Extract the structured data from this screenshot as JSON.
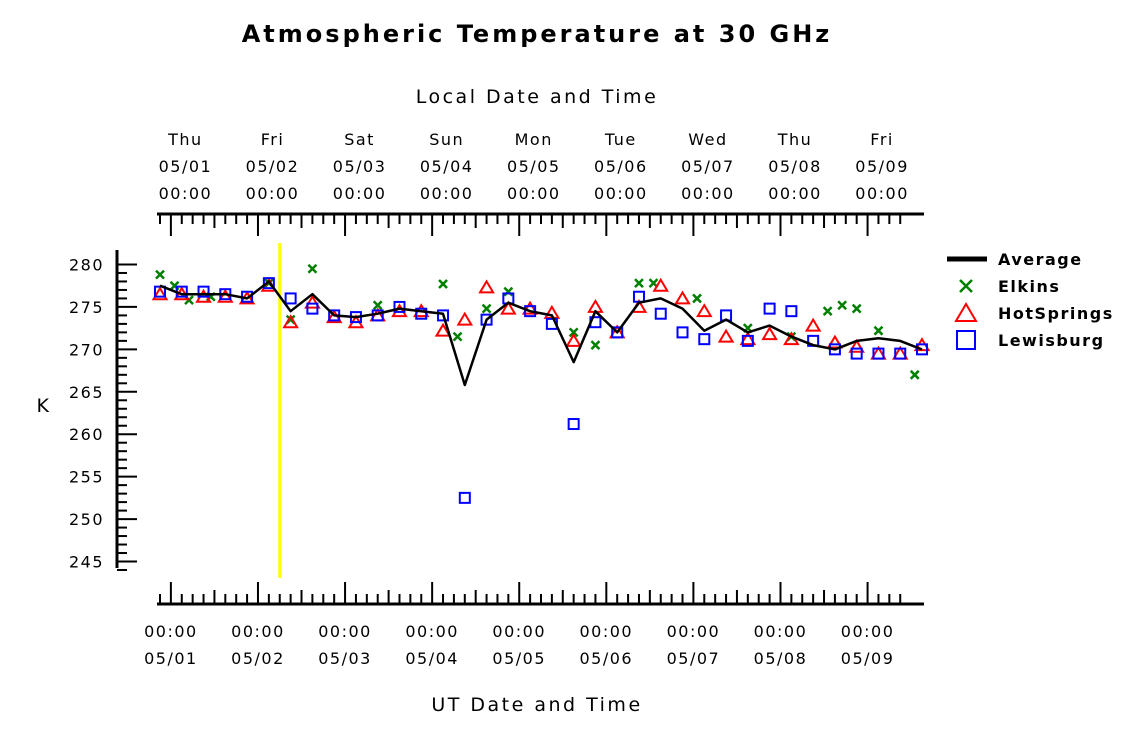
{
  "chart_data": {
    "type": "line+scatter",
    "title": "Atmospheric Temperature at 30 GHz",
    "top_axis_label": "Local Date and Time",
    "xlabel": "UT Date and Time",
    "ylabel": "K",
    "ylim": [
      244,
      281
    ],
    "yticks": [
      245,
      250,
      255,
      260,
      265,
      270,
      275,
      280
    ],
    "xlim": [
      "2008-04-30T21:00",
      "2008-05-09T15:00"
    ],
    "top_ticks": [
      {
        "day": "Thu",
        "date": "05/01",
        "time": "00:00"
      },
      {
        "day": "Fri",
        "date": "05/02",
        "time": "00:00"
      },
      {
        "day": "Sat",
        "date": "05/03",
        "time": "00:00"
      },
      {
        "day": "Sun",
        "date": "05/04",
        "time": "00:00"
      },
      {
        "day": "Mon",
        "date": "05/05",
        "time": "00:00"
      },
      {
        "day": "Tue",
        "date": "05/06",
        "time": "00:00"
      },
      {
        "day": "Wed",
        "date": "05/07",
        "time": "00:00"
      },
      {
        "day": "Thu",
        "date": "05/08",
        "time": "00:00"
      },
      {
        "day": "Fri",
        "date": "05/09",
        "time": "00:00"
      }
    ],
    "bottom_ticks": [
      {
        "time": "00:00",
        "date": "05/01"
      },
      {
        "time": "00:00",
        "date": "05/02"
      },
      {
        "time": "00:00",
        "date": "05/03"
      },
      {
        "time": "00:00",
        "date": "05/04"
      },
      {
        "time": "00:00",
        "date": "05/05"
      },
      {
        "time": "00:00",
        "date": "05/06"
      },
      {
        "time": "00:00",
        "date": "05/07"
      },
      {
        "time": "00:00",
        "date": "05/08"
      },
      {
        "time": "00:00",
        "date": "05/09"
      }
    ],
    "marker_line": {
      "x": "2008-05-02T06:00",
      "color": "#ffff00"
    },
    "legend": "right",
    "series": [
      {
        "name": "Average",
        "marker": "line",
        "color": "#000000",
        "points": [
          [
            "2008-04-30T21:00",
            277.5
          ],
          [
            "2008-05-01T03:00",
            276.5
          ],
          [
            "2008-05-01T09:00",
            276.5
          ],
          [
            "2008-05-01T15:00",
            276.5
          ],
          [
            "2008-05-01T21:00",
            276.0
          ],
          [
            "2008-05-02T03:00",
            278.0
          ],
          [
            "2008-05-02T09:00",
            274.5
          ],
          [
            "2008-05-02T15:00",
            276.5
          ],
          [
            "2008-05-02T21:00",
            274.0
          ],
          [
            "2008-05-03T03:00",
            273.8
          ],
          [
            "2008-05-03T09:00",
            274.2
          ],
          [
            "2008-05-03T15:00",
            274.8
          ],
          [
            "2008-05-03T21:00",
            274.5
          ],
          [
            "2008-05-04T03:00",
            274.2
          ],
          [
            "2008-05-04T09:00",
            265.8
          ],
          [
            "2008-05-04T15:00",
            273.5
          ],
          [
            "2008-05-04T21:00",
            275.5
          ],
          [
            "2008-05-05T03:00",
            274.5
          ],
          [
            "2008-05-05T09:00",
            274.0
          ],
          [
            "2008-05-05T15:00",
            268.5
          ],
          [
            "2008-05-05T21:00",
            274.5
          ],
          [
            "2008-05-06T03:00",
            272.0
          ],
          [
            "2008-05-06T09:00",
            275.5
          ],
          [
            "2008-05-06T15:00",
            276.0
          ],
          [
            "2008-05-06T21:00",
            274.8
          ],
          [
            "2008-05-07T03:00",
            272.2
          ],
          [
            "2008-05-07T09:00",
            273.5
          ],
          [
            "2008-05-07T15:00",
            272.0
          ],
          [
            "2008-05-07T21:00",
            272.8
          ],
          [
            "2008-05-08T03:00",
            271.5
          ],
          [
            "2008-05-08T09:00",
            270.5
          ],
          [
            "2008-05-08T15:00",
            270.0
          ],
          [
            "2008-05-08T21:00",
            271.0
          ],
          [
            "2008-05-09T03:00",
            271.3
          ],
          [
            "2008-05-09T09:00",
            271.0
          ],
          [
            "2008-05-09T15:00",
            270.0
          ]
        ]
      },
      {
        "name": "Elkins",
        "marker": "x",
        "color": "#008000",
        "points": [
          [
            "2008-04-30T21:00",
            278.8
          ],
          [
            "2008-05-01T01:00",
            277.5
          ],
          [
            "2008-05-01T05:00",
            275.8
          ],
          [
            "2008-05-01T11:00",
            276.2
          ],
          [
            "2008-05-02T03:00",
            277.8
          ],
          [
            "2008-05-02T09:00",
            273.5
          ],
          [
            "2008-05-02T15:00",
            279.5
          ],
          [
            "2008-05-03T09:00",
            275.2
          ],
          [
            "2008-05-04T03:00",
            277.7
          ],
          [
            "2008-05-04T07:00",
            271.5
          ],
          [
            "2008-05-04T15:00",
            274.8
          ],
          [
            "2008-05-04T21:00",
            276.8
          ],
          [
            "2008-05-05T15:00",
            272.0
          ],
          [
            "2008-05-05T21:00",
            270.5
          ],
          [
            "2008-05-06T09:00",
            277.8
          ],
          [
            "2008-05-06T13:00",
            277.8
          ],
          [
            "2008-05-07T01:00",
            276.0
          ],
          [
            "2008-05-07T15:00",
            272.5
          ],
          [
            "2008-05-08T03:00",
            271.5
          ],
          [
            "2008-05-08T13:00",
            274.5
          ],
          [
            "2008-05-08T17:00",
            275.2
          ],
          [
            "2008-05-08T21:00",
            274.8
          ],
          [
            "2008-05-09T03:00",
            272.2
          ],
          [
            "2008-05-09T13:00",
            267.0
          ]
        ]
      },
      {
        "name": "HotSprings",
        "marker": "triangle",
        "color": "#ff0000",
        "points": [
          [
            "2008-04-30T21:00",
            276.5
          ],
          [
            "2008-05-01T03:00",
            276.5
          ],
          [
            "2008-05-01T09:00",
            276.2
          ],
          [
            "2008-05-01T15:00",
            276.2
          ],
          [
            "2008-05-01T21:00",
            276.0
          ],
          [
            "2008-05-02T03:00",
            277.5
          ],
          [
            "2008-05-02T09:00",
            273.2
          ],
          [
            "2008-05-02T15:00",
            275.5
          ],
          [
            "2008-05-02T21:00",
            273.8
          ],
          [
            "2008-05-03T03:00",
            273.2
          ],
          [
            "2008-05-03T09:00",
            274.0
          ],
          [
            "2008-05-03T15:00",
            274.5
          ],
          [
            "2008-05-03T21:00",
            274.5
          ],
          [
            "2008-05-04T03:00",
            272.2
          ],
          [
            "2008-05-04T09:00",
            273.5
          ],
          [
            "2008-05-04T15:00",
            277.3
          ],
          [
            "2008-05-04T21:00",
            274.8
          ],
          [
            "2008-05-05T03:00",
            274.8
          ],
          [
            "2008-05-05T09:00",
            274.3
          ],
          [
            "2008-05-05T15:00",
            271.0
          ],
          [
            "2008-05-05T21:00",
            275.0
          ],
          [
            "2008-05-06T03:00",
            272.0
          ],
          [
            "2008-05-06T09:00",
            275.0
          ],
          [
            "2008-05-06T15:00",
            277.5
          ],
          [
            "2008-05-06T21:00",
            276.0
          ],
          [
            "2008-05-07T03:00",
            274.5
          ],
          [
            "2008-05-07T09:00",
            271.5
          ],
          [
            "2008-05-07T15:00",
            271.2
          ],
          [
            "2008-05-07T21:00",
            271.8
          ],
          [
            "2008-05-08T03:00",
            271.2
          ],
          [
            "2008-05-08T09:00",
            272.8
          ],
          [
            "2008-05-08T15:00",
            270.8
          ],
          [
            "2008-05-08T21:00",
            270.3
          ],
          [
            "2008-05-09T03:00",
            269.5
          ],
          [
            "2008-05-09T09:00",
            269.5
          ],
          [
            "2008-05-09T15:00",
            270.5
          ]
        ]
      },
      {
        "name": "Lewisburg",
        "marker": "square",
        "color": "#0000ff",
        "points": [
          [
            "2008-04-30T21:00",
            276.8
          ],
          [
            "2008-05-01T03:00",
            276.8
          ],
          [
            "2008-05-01T09:00",
            276.8
          ],
          [
            "2008-05-01T15:00",
            276.5
          ],
          [
            "2008-05-01T21:00",
            276.2
          ],
          [
            "2008-05-02T03:00",
            277.8
          ],
          [
            "2008-05-02T09:00",
            276.0
          ],
          [
            "2008-05-02T15:00",
            274.8
          ],
          [
            "2008-05-02T21:00",
            274.0
          ],
          [
            "2008-05-03T03:00",
            273.8
          ],
          [
            "2008-05-03T09:00",
            274.0
          ],
          [
            "2008-05-03T15:00",
            275.0
          ],
          [
            "2008-05-03T21:00",
            274.2
          ],
          [
            "2008-05-04T03:00",
            274.0
          ],
          [
            "2008-05-04T09:00",
            252.5
          ],
          [
            "2008-05-04T15:00",
            273.5
          ],
          [
            "2008-05-04T21:00",
            276.0
          ],
          [
            "2008-05-05T03:00",
            274.5
          ],
          [
            "2008-05-05T09:00",
            273.0
          ],
          [
            "2008-05-05T15:00",
            261.2
          ],
          [
            "2008-05-05T21:00",
            273.2
          ],
          [
            "2008-05-06T03:00",
            272.0
          ],
          [
            "2008-05-06T09:00",
            276.2
          ],
          [
            "2008-05-06T15:00",
            274.2
          ],
          [
            "2008-05-06T21:00",
            272.0
          ],
          [
            "2008-05-07T03:00",
            271.2
          ],
          [
            "2008-05-07T09:00",
            274.0
          ],
          [
            "2008-05-07T15:00",
            271.0
          ],
          [
            "2008-05-07T21:00",
            274.8
          ],
          [
            "2008-05-08T03:00",
            274.5
          ],
          [
            "2008-05-08T09:00",
            271.0
          ],
          [
            "2008-05-08T15:00",
            270.0
          ],
          [
            "2008-05-08T21:00",
            269.5
          ],
          [
            "2008-05-09T03:00",
            269.5
          ],
          [
            "2008-05-09T09:00",
            269.5
          ],
          [
            "2008-05-09T15:00",
            270.0
          ]
        ]
      }
    ]
  }
}
